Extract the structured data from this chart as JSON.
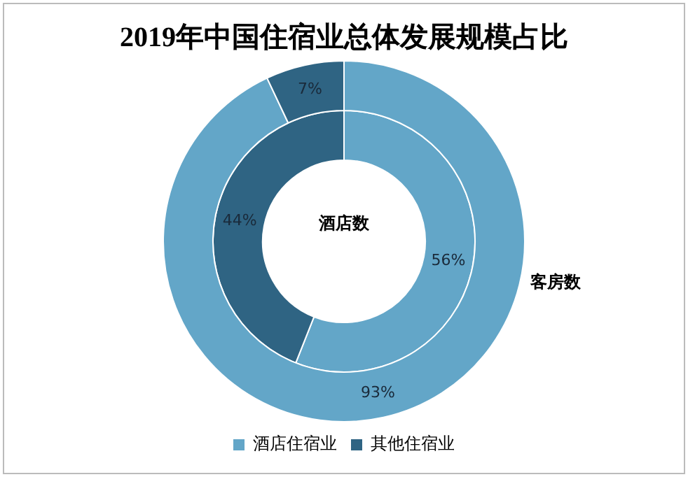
{
  "chart_data": {
    "type": "donut",
    "title": "2019年中国住宿业总体发展规模占比",
    "categories": [
      "酒店住宿业",
      "其他住宿业"
    ],
    "colors": [
      "#63a6c8",
      "#2f6483"
    ],
    "legend": "bottom",
    "series": [
      {
        "name": "客房数",
        "values": [
          93,
          7
        ],
        "value_labels": [
          "93%",
          "7%"
        ]
      },
      {
        "name": "酒店数",
        "values": [
          56,
          44
        ],
        "value_labels": [
          "56%",
          "44%"
        ]
      }
    ]
  }
}
